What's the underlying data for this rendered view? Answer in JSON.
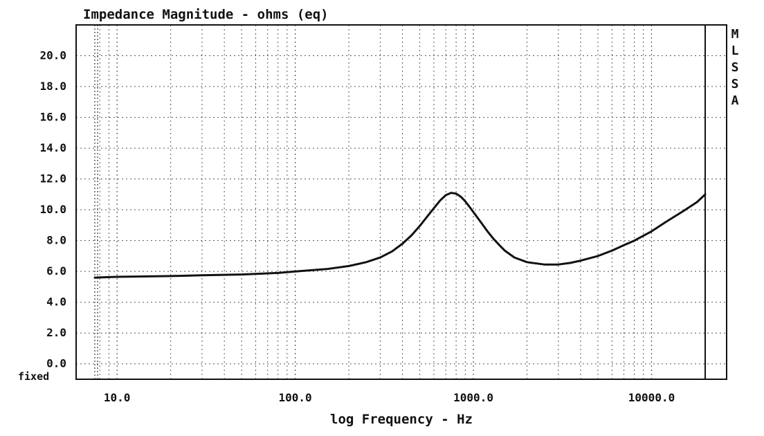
{
  "chart_data": {
    "type": "line",
    "title": "Impedance Magnitude - ohms (eq)",
    "xlabel": "log Frequency - Hz",
    "ylabel": "",
    "x_scale": "log",
    "xlim": [
      7.5,
      20000
    ],
    "ylim": [
      -1.0,
      22.0
    ],
    "x_ticks": [
      {
        "value": 10,
        "label": "10.0"
      },
      {
        "value": 100,
        "label": "100.0"
      },
      {
        "value": 1000,
        "label": "1000.0"
      },
      {
        "value": 10000,
        "label": "10000.0"
      }
    ],
    "y_ticks": [
      {
        "value": 0,
        "label": "0.0"
      },
      {
        "value": 2,
        "label": "2.0"
      },
      {
        "value": 4,
        "label": "4.0"
      },
      {
        "value": 6,
        "label": "6.0"
      },
      {
        "value": 8,
        "label": "8.0"
      },
      {
        "value": 10,
        "label": "10.0"
      },
      {
        "value": 12,
        "label": "12.0"
      },
      {
        "value": 14,
        "label": "14.0"
      },
      {
        "value": 16,
        "label": "16.0"
      },
      {
        "value": 18,
        "label": "18.0"
      },
      {
        "value": 20,
        "label": "20.0"
      }
    ],
    "bottom_left_label": "fixed",
    "side_label": [
      "M",
      "L",
      "S",
      "S",
      "A"
    ],
    "grid": true,
    "series": [
      {
        "name": "",
        "x": [
          7.5,
          10,
          20,
          30,
          50,
          80,
          100,
          150,
          200,
          250,
          300,
          350,
          400,
          450,
          500,
          550,
          600,
          650,
          700,
          750,
          800,
          850,
          900,
          950,
          1000,
          1100,
          1200,
          1300,
          1400,
          1500,
          1700,
          2000,
          2500,
          3000,
          3500,
          4000,
          5000,
          6000,
          7000,
          8000,
          10000,
          12000,
          15000,
          18000,
          20000
        ],
        "y": [
          5.6,
          5.65,
          5.7,
          5.75,
          5.8,
          5.9,
          6.0,
          6.15,
          6.35,
          6.6,
          6.9,
          7.3,
          7.8,
          8.35,
          8.95,
          9.55,
          10.1,
          10.6,
          10.95,
          11.1,
          11.05,
          10.85,
          10.55,
          10.2,
          9.85,
          9.2,
          8.6,
          8.1,
          7.7,
          7.35,
          6.9,
          6.6,
          6.45,
          6.45,
          6.55,
          6.7,
          7.0,
          7.35,
          7.7,
          8.0,
          8.6,
          9.2,
          9.9,
          10.5,
          11.0
        ]
      }
    ]
  }
}
